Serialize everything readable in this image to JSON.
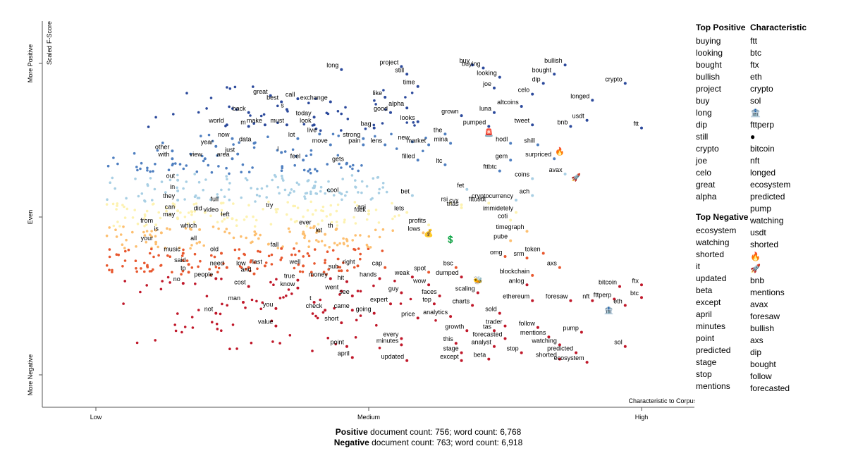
{
  "chart_data": {
    "type": "scatter",
    "axes": {
      "ylabel": "Scaled F-Score",
      "y_ticks": [
        "More Positive",
        "Even",
        "More Negative"
      ],
      "x_ticks": [
        "Low",
        "Medium",
        "High"
      ],
      "xlabel": "Characteristic to Corpus",
      "xlim": [
        0,
        1
      ],
      "ylim": [
        -1,
        1
      ],
      "grid": false
    },
    "labeled_terms": [
      {
        "t": "long",
        "x": 0.45,
        "y": 0.96
      },
      {
        "t": "project",
        "x": 0.56,
        "y": 0.98
      },
      {
        "t": "still",
        "x": 0.57,
        "y": 0.93
      },
      {
        "t": "time",
        "x": 0.59,
        "y": 0.85
      },
      {
        "t": "buy",
        "x": 0.69,
        "y": 0.99
      },
      {
        "t": "buying",
        "x": 0.71,
        "y": 0.97
      },
      {
        "t": "bullish",
        "x": 0.86,
        "y": 0.99
      },
      {
        "t": "bought",
        "x": 0.84,
        "y": 0.93
      },
      {
        "t": "looking",
        "x": 0.74,
        "y": 0.91
      },
      {
        "t": "dip",
        "x": 0.82,
        "y": 0.87
      },
      {
        "t": "joe",
        "x": 0.73,
        "y": 0.84
      },
      {
        "t": "celo",
        "x": 0.8,
        "y": 0.8
      },
      {
        "t": "crypto",
        "x": 0.97,
        "y": 0.87
      },
      {
        "t": "longed",
        "x": 0.91,
        "y": 0.76
      },
      {
        "t": "great",
        "x": 0.32,
        "y": 0.79
      },
      {
        "t": "best",
        "x": 0.34,
        "y": 0.75
      },
      {
        "t": "call",
        "x": 0.37,
        "y": 0.77
      },
      {
        "t": "exchange",
        "x": 0.43,
        "y": 0.75
      },
      {
        "t": "like",
        "x": 0.53,
        "y": 0.78
      },
      {
        "t": "alpha",
        "x": 0.57,
        "y": 0.71
      },
      {
        "t": "altcoins",
        "x": 0.78,
        "y": 0.72
      },
      {
        "t": "back",
        "x": 0.28,
        "y": 0.68
      },
      {
        "t": "s",
        "x": 0.35,
        "y": 0.7
      },
      {
        "t": "good",
        "x": 0.54,
        "y": 0.68
      },
      {
        "t": "grown",
        "x": 0.67,
        "y": 0.66
      },
      {
        "t": "luna",
        "x": 0.73,
        "y": 0.68
      },
      {
        "t": "today",
        "x": 0.4,
        "y": 0.65
      },
      {
        "t": "usdt",
        "x": 0.9,
        "y": 0.63
      },
      {
        "t": "world",
        "x": 0.24,
        "y": 0.6
      },
      {
        "t": "m",
        "x": 0.28,
        "y": 0.59
      },
      {
        "t": "make",
        "x": 0.31,
        "y": 0.6
      },
      {
        "t": "must",
        "x": 0.35,
        "y": 0.6
      },
      {
        "t": "look",
        "x": 0.4,
        "y": 0.6
      },
      {
        "t": "bag",
        "x": 0.51,
        "y": 0.58
      },
      {
        "t": "looks",
        "x": 0.59,
        "y": 0.62
      },
      {
        "t": "pumped",
        "x": 0.72,
        "y": 0.59
      },
      {
        "t": "tweet",
        "x": 0.8,
        "y": 0.6
      },
      {
        "t": "bnb",
        "x": 0.87,
        "y": 0.59
      },
      {
        "t": "now",
        "x": 0.25,
        "y": 0.51
      },
      {
        "t": "data",
        "x": 0.29,
        "y": 0.48
      },
      {
        "t": "lot",
        "x": 0.37,
        "y": 0.51
      },
      {
        "t": "live",
        "x": 0.41,
        "y": 0.54
      },
      {
        "t": "the",
        "x": 0.64,
        "y": 0.54
      },
      {
        "t": "year",
        "x": 0.22,
        "y": 0.46
      },
      {
        "t": "move",
        "x": 0.43,
        "y": 0.47
      },
      {
        "t": "strong",
        "x": 0.49,
        "y": 0.51
      },
      {
        "t": "new",
        "x": 0.58,
        "y": 0.49
      },
      {
        "t": "hodl",
        "x": 0.76,
        "y": 0.48
      },
      {
        "t": "shill",
        "x": 0.81,
        "y": 0.47
      },
      {
        "t": "pain",
        "x": 0.49,
        "y": 0.47
      },
      {
        "t": "lens",
        "x": 0.53,
        "y": 0.47
      },
      {
        "t": "market",
        "x": 0.61,
        "y": 0.47
      },
      {
        "t": "mina",
        "x": 0.65,
        "y": 0.48
      },
      {
        "t": "other",
        "x": 0.14,
        "y": 0.43
      },
      {
        "t": "just",
        "x": 0.26,
        "y": 0.41
      },
      {
        "t": "i",
        "x": 0.34,
        "y": 0.42
      },
      {
        "t": "with",
        "x": 0.14,
        "y": 0.38
      },
      {
        "t": "view",
        "x": 0.2,
        "y": 0.38
      },
      {
        "t": "area",
        "x": 0.25,
        "y": 0.38
      },
      {
        "t": "feel",
        "x": 0.38,
        "y": 0.37
      },
      {
        "t": "filled",
        "x": 0.59,
        "y": 0.37
      },
      {
        "t": "gem",
        "x": 0.76,
        "y": 0.37
      },
      {
        "t": "surpriced",
        "x": 0.84,
        "y": 0.38
      },
      {
        "t": "gets",
        "x": 0.46,
        "y": 0.35
      },
      {
        "t": "ltc",
        "x": 0.64,
        "y": 0.34
      },
      {
        "t": "fttbtc",
        "x": 0.74,
        "y": 0.3
      },
      {
        "t": "avax",
        "x": 0.86,
        "y": 0.28
      },
      {
        "t": "out",
        "x": 0.15,
        "y": 0.24
      },
      {
        "t": "coins",
        "x": 0.8,
        "y": 0.25
      },
      {
        "t": "in",
        "x": 0.15,
        "y": 0.17
      },
      {
        "t": "cool",
        "x": 0.45,
        "y": 0.15
      },
      {
        "t": "bet",
        "x": 0.58,
        "y": 0.14
      },
      {
        "t": "fet",
        "x": 0.68,
        "y": 0.18
      },
      {
        "t": "ach",
        "x": 0.8,
        "y": 0.14
      },
      {
        "t": "they",
        "x": 0.15,
        "y": 0.11
      },
      {
        "t": "full",
        "x": 0.23,
        "y": 0.09
      },
      {
        "t": "rsi",
        "x": 0.65,
        "y": 0.09
      },
      {
        "t": "cvx",
        "x": 0.67,
        "y": 0.08
      },
      {
        "t": "fttusdt",
        "x": 0.72,
        "y": 0.09
      },
      {
        "t": "cryptocurrency",
        "x": 0.77,
        "y": 0.11
      },
      {
        "t": "trias",
        "x": 0.67,
        "y": 0.06
      },
      {
        "t": "try",
        "x": 0.33,
        "y": 0.05
      },
      {
        "t": "can",
        "x": 0.15,
        "y": 0.04
      },
      {
        "t": "api",
        "x": 0.5,
        "y": 0.04
      },
      {
        "t": "did",
        "x": 0.2,
        "y": 0.03
      },
      {
        "t": "video",
        "x": 0.23,
        "y": 0.02
      },
      {
        "t": "fuck",
        "x": 0.5,
        "y": 0.02
      },
      {
        "t": "lets",
        "x": 0.57,
        "y": 0.03
      },
      {
        "t": "immidetely",
        "x": 0.77,
        "y": 0.03
      },
      {
        "t": "may",
        "x": 0.15,
        "y": -0.01
      },
      {
        "t": "left",
        "x": 0.25,
        "y": -0.01
      },
      {
        "t": "coti",
        "x": 0.76,
        "y": -0.02
      },
      {
        "t": "from",
        "x": 0.11,
        "y": -0.05
      },
      {
        "t": "which",
        "x": 0.19,
        "y": -0.08
      },
      {
        "t": "ever",
        "x": 0.4,
        "y": -0.06
      },
      {
        "t": "th",
        "x": 0.44,
        "y": -0.08
      },
      {
        "t": "profits",
        "x": 0.61,
        "y": -0.05
      },
      {
        "t": "is",
        "x": 0.12,
        "y": -0.1
      },
      {
        "t": "let",
        "x": 0.42,
        "y": -0.11
      },
      {
        "t": "lows",
        "x": 0.6,
        "y": -0.1
      },
      {
        "t": "timegraph",
        "x": 0.79,
        "y": -0.09
      },
      {
        "t": "your",
        "x": 0.11,
        "y": -0.16
      },
      {
        "t": "all",
        "x": 0.19,
        "y": -0.16
      },
      {
        "t": "pube",
        "x": 0.76,
        "y": -0.15
      },
      {
        "t": "fall",
        "x": 0.34,
        "y": -0.2
      },
      {
        "t": "music",
        "x": 0.16,
        "y": -0.23
      },
      {
        "t": "old",
        "x": 0.23,
        "y": -0.23
      },
      {
        "t": "token",
        "x": 0.82,
        "y": -0.23
      },
      {
        "t": "omg",
        "x": 0.75,
        "y": -0.25
      },
      {
        "t": "srm",
        "x": 0.79,
        "y": -0.26
      },
      {
        "t": "said",
        "x": 0.17,
        "y": -0.3
      },
      {
        "t": "need",
        "x": 0.24,
        "y": -0.32
      },
      {
        "t": "low",
        "x": 0.28,
        "y": -0.32
      },
      {
        "t": "last",
        "x": 0.31,
        "y": -0.31
      },
      {
        "t": "well",
        "x": 0.38,
        "y": -0.31
      },
      {
        "t": "right",
        "x": 0.48,
        "y": -0.31
      },
      {
        "t": "cap",
        "x": 0.53,
        "y": -0.32
      },
      {
        "t": "bsc",
        "x": 0.66,
        "y": -0.32
      },
      {
        "t": "axs",
        "x": 0.85,
        "y": -0.32
      },
      {
        "t": "to",
        "x": 0.17,
        "y": -0.35
      },
      {
        "t": "and",
        "x": 0.29,
        "y": -0.36
      },
      {
        "t": "sub",
        "x": 0.45,
        "y": -0.34
      },
      {
        "t": "spot",
        "x": 0.61,
        "y": -0.35
      },
      {
        "t": "blockchain",
        "x": 0.8,
        "y": -0.37
      },
      {
        "t": "people",
        "x": 0.22,
        "y": -0.39
      },
      {
        "t": "true",
        "x": 0.37,
        "y": -0.4
      },
      {
        "t": "money",
        "x": 0.43,
        "y": -0.39
      },
      {
        "t": "hit",
        "x": 0.46,
        "y": -0.41
      },
      {
        "t": "hands",
        "x": 0.52,
        "y": -0.39
      },
      {
        "t": "weak",
        "x": 0.58,
        "y": -0.38
      },
      {
        "t": "dumped",
        "x": 0.67,
        "y": -0.38
      },
      {
        "t": "no",
        "x": 0.16,
        "y": -0.42
      },
      {
        "t": "cost",
        "x": 0.28,
        "y": -0.44
      },
      {
        "t": "know",
        "x": 0.37,
        "y": -0.45
      },
      {
        "t": "wow",
        "x": 0.61,
        "y": -0.43
      },
      {
        "t": "anlog",
        "x": 0.79,
        "y": -0.43
      },
      {
        "t": "went",
        "x": 0.45,
        "y": -0.47
      },
      {
        "t": "guy",
        "x": 0.56,
        "y": -0.48
      },
      {
        "t": "scaling",
        "x": 0.7,
        "y": -0.48
      },
      {
        "t": "bitcoin",
        "x": 0.96,
        "y": -0.44
      },
      {
        "t": "ftx",
        "x": 1.0,
        "y": -0.43
      },
      {
        "t": "see",
        "x": 0.47,
        "y": -0.5
      },
      {
        "t": "faces",
        "x": 0.63,
        "y": -0.5
      },
      {
        "t": "man",
        "x": 0.27,
        "y": -0.54
      },
      {
        "t": "t",
        "x": 0.4,
        "y": -0.54
      },
      {
        "t": "expert",
        "x": 0.54,
        "y": -0.55
      },
      {
        "t": "top",
        "x": 0.62,
        "y": -0.55
      },
      {
        "t": "charts",
        "x": 0.69,
        "y": -0.56
      },
      {
        "t": "ethereum",
        "x": 0.8,
        "y": -0.53
      },
      {
        "t": "foresaw",
        "x": 0.87,
        "y": -0.53
      },
      {
        "t": "nft",
        "x": 0.91,
        "y": -0.53
      },
      {
        "t": "fttperp",
        "x": 0.95,
        "y": -0.52
      },
      {
        "t": "btc",
        "x": 1.0,
        "y": -0.51
      },
      {
        "t": "eth",
        "x": 0.97,
        "y": -0.56
      },
      {
        "t": "you",
        "x": 0.33,
        "y": -0.58
      },
      {
        "t": "check",
        "x": 0.42,
        "y": -0.59
      },
      {
        "t": "came",
        "x": 0.47,
        "y": -0.59
      },
      {
        "t": "going",
        "x": 0.51,
        "y": -0.61
      },
      {
        "t": "not",
        "x": 0.22,
        "y": -0.61
      },
      {
        "t": "sold",
        "x": 0.74,
        "y": -0.61
      },
      {
        "t": "analytics",
        "x": 0.65,
        "y": -0.63
      },
      {
        "t": "price",
        "x": 0.59,
        "y": -0.64
      },
      {
        "t": "short",
        "x": 0.45,
        "y": -0.67
      },
      {
        "t": "value",
        "x": 0.33,
        "y": -0.69
      },
      {
        "t": "trader",
        "x": 0.75,
        "y": -0.69
      },
      {
        "t": "follow",
        "x": 0.81,
        "y": -0.7
      },
      {
        "t": "tas",
        "x": 0.73,
        "y": -0.72
      },
      {
        "t": "growth",
        "x": 0.68,
        "y": -0.72
      },
      {
        "t": "pump",
        "x": 0.89,
        "y": -0.73
      },
      {
        "t": "mentions",
        "x": 0.83,
        "y": -0.76
      },
      {
        "t": "forecasted",
        "x": 0.75,
        "y": -0.77
      },
      {
        "t": "every",
        "x": 0.56,
        "y": -0.77
      },
      {
        "t": "this",
        "x": 0.66,
        "y": -0.8
      },
      {
        "t": "minutes",
        "x": 0.56,
        "y": -0.81
      },
      {
        "t": "point",
        "x": 0.46,
        "y": -0.82
      },
      {
        "t": "analyst",
        "x": 0.73,
        "y": -0.82
      },
      {
        "t": "watching",
        "x": 0.85,
        "y": -0.81
      },
      {
        "t": "sol",
        "x": 0.97,
        "y": -0.82
      },
      {
        "t": "stage",
        "x": 0.67,
        "y": -0.86
      },
      {
        "t": "stop",
        "x": 0.78,
        "y": -0.86
      },
      {
        "t": "predicted",
        "x": 0.88,
        "y": -0.86
      },
      {
        "t": "april",
        "x": 0.47,
        "y": -0.89
      },
      {
        "t": "updated",
        "x": 0.57,
        "y": -0.91
      },
      {
        "t": "except",
        "x": 0.67,
        "y": -0.91
      },
      {
        "t": "beta",
        "x": 0.72,
        "y": -0.9
      },
      {
        "t": "shorted",
        "x": 0.85,
        "y": -0.9
      },
      {
        "t": "ecosystem",
        "x": 0.9,
        "y": -0.92
      },
      {
        "t": "ftt",
        "x": 1.0,
        "y": 0.58
      }
    ],
    "emoji_terms": [
      {
        "icon": "ambulance-light-icon",
        "glyph": "🚨",
        "x": 0.72,
        "y": 0.55
      },
      {
        "icon": "fire-icon",
        "glyph": "🔥",
        "x": 0.85,
        "y": 0.43
      },
      {
        "icon": "rocket-icon",
        "glyph": "🚀",
        "x": 0.88,
        "y": 0.26
      },
      {
        "icon": "moneybag-icon",
        "glyph": "💰",
        "x": 0.61,
        "y": -0.1
      },
      {
        "icon": "dollar-icon",
        "glyph": "💲",
        "x": 0.65,
        "y": -0.14
      },
      {
        "icon": "bee-icon",
        "glyph": "🐝",
        "x": 0.7,
        "y": -0.4
      },
      {
        "icon": "bank-icon",
        "glyph": "🏦",
        "x": 0.94,
        "y": -0.59
      }
    ],
    "density": {
      "seed": 7,
      "count": 620
    }
  },
  "panel": {
    "top_positive_title": "Top Positive",
    "top_positive": [
      "buying",
      "looking",
      "bought",
      "bullish",
      "project",
      "buy",
      "long",
      "dip",
      "still",
      "crypto",
      "joe",
      "celo",
      "great",
      "alpha"
    ],
    "top_negative_title": "Top Negative",
    "top_negative": [
      "ecosystem",
      "watching",
      "shorted",
      "it",
      "updated",
      "beta",
      "except",
      "april",
      "minutes",
      "point",
      "predicted",
      "stage",
      "stop",
      "mentions"
    ],
    "characteristic_title": "Characteristic",
    "characteristic": [
      {
        "text": "ftt"
      },
      {
        "text": "btc"
      },
      {
        "text": "ftx"
      },
      {
        "text": "eth"
      },
      {
        "text": "crypto"
      },
      {
        "text": "sol"
      },
      {
        "text": "",
        "icon": "bank-icon",
        "glyph": "🏦"
      },
      {
        "text": "fttperp"
      },
      {
        "text": "",
        "icon": "bomb-icon",
        "glyph": "●"
      },
      {
        "text": "bitcoin"
      },
      {
        "text": "nft"
      },
      {
        "text": "longed"
      },
      {
        "text": "ecosystem"
      },
      {
        "text": "predicted"
      },
      {
        "text": "pump"
      },
      {
        "text": "watching"
      },
      {
        "text": "usdt"
      },
      {
        "text": "shorted"
      },
      {
        "text": "",
        "icon": "fire-icon",
        "glyph": "🔥"
      },
      {
        "text": "",
        "icon": "rocket-icon",
        "glyph": "🚀"
      },
      {
        "text": "bnb"
      },
      {
        "text": "mentions"
      },
      {
        "text": "avax"
      },
      {
        "text": "foresaw"
      },
      {
        "text": "bullish"
      },
      {
        "text": "axs"
      },
      {
        "text": "dip"
      },
      {
        "text": "bought"
      },
      {
        "text": "follow"
      },
      {
        "text": "forecasted"
      }
    ]
  },
  "footer": {
    "positive_label": "Positive",
    "positive_text": " document count: 756; word count: 6,768",
    "negative_label": "Negative",
    "negative_text": " document count: 763; word count: 6,918"
  },
  "colors": {
    "strong_positive": "#2c4a9c",
    "positive": "#4f7fc0",
    "light_positive": "#a8cfe4",
    "neutral": "#fdf2b0",
    "light_negative": "#fdbf70",
    "negative": "#e8582f",
    "strong_negative": "#c0182a",
    "axis": "#555555"
  }
}
